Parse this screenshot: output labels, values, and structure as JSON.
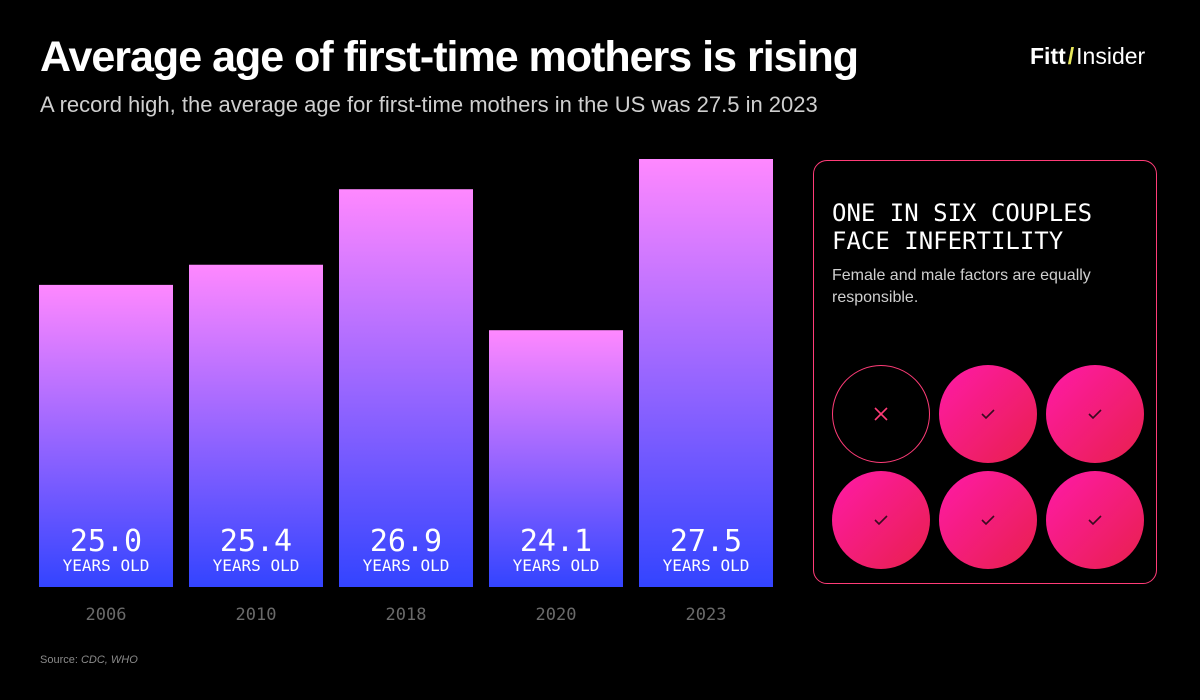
{
  "header": {
    "title": "Average age of first-time mothers is rising",
    "subtitle": "A record high, the average age for first-time mothers in the US was 27.5 in 2023"
  },
  "logo": {
    "part1": "Fitt",
    "slash": "/",
    "part2": "Insider",
    "slash_color": "#e8e85a"
  },
  "chart_data": {
    "type": "bar",
    "categories": [
      "2006",
      "2010",
      "2018",
      "2020",
      "2023"
    ],
    "values": [
      25.0,
      25.4,
      26.9,
      24.1,
      27.5
    ],
    "value_labels": [
      "25.0",
      "25.4",
      "26.9",
      "24.1",
      "27.5"
    ],
    "unit_label": "YEARS OLD",
    "bar_gradient": [
      "#ff88ff",
      "#3344ff"
    ]
  },
  "panel": {
    "heading_lines": [
      "ONE IN SIX COUPLES",
      "FACE INFERTILITY"
    ],
    "text": "Female and male factors are equally responsible.",
    "circles": [
      "x",
      "check",
      "check",
      "check",
      "check",
      "check"
    ],
    "accent_color": "#ff3c78"
  },
  "source": {
    "prefix": "Source: ",
    "text": "CDC, WHO"
  }
}
